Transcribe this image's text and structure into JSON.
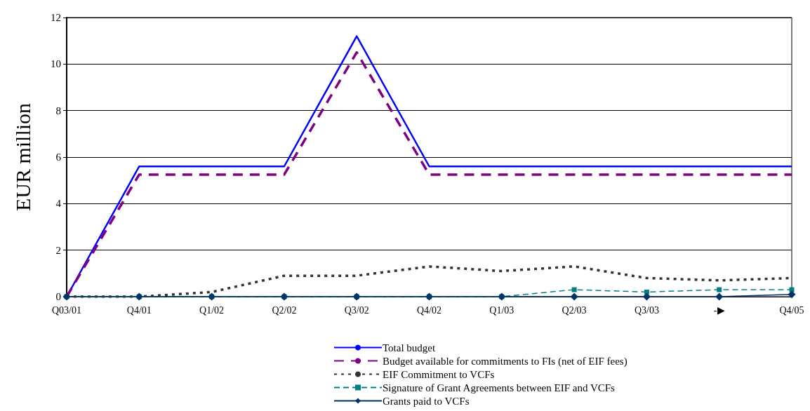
{
  "chart_data": {
    "type": "line",
    "ylabel": "EUR million",
    "categories": [
      "Q03/01",
      "Q4/01",
      "Q1/02",
      "Q2/02",
      "Q3/02",
      "Q4/02",
      "Q1/03",
      "Q2/03",
      "Q3/03",
      "-▶",
      "Q4/05"
    ],
    "series": [
      {
        "name": "Total budget",
        "color": "#0000ff",
        "line_style": "solid",
        "marker": "none",
        "values": [
          0,
          5.6,
          5.6,
          5.6,
          11.2,
          5.6,
          5.6,
          5.6,
          5.6,
          5.6,
          5.6
        ]
      },
      {
        "name": "Budget available for commitments to FIs (net of EIF fees)",
        "color": "#800080",
        "line_style": "dashed",
        "marker": "none",
        "values": [
          0,
          5.25,
          5.25,
          5.25,
          10.5,
          5.25,
          5.25,
          5.25,
          5.25,
          5.25,
          5.25
        ]
      },
      {
        "name": "EIF Commitment to VCFs",
        "color": "#333333",
        "line_style": "dotted",
        "marker": "none",
        "values": [
          0,
          0,
          0.2,
          0.9,
          0.9,
          1.3,
          1.1,
          1.3,
          0.8,
          0.7,
          0.8
        ]
      },
      {
        "name": "Signature of Grant Agreements between EIF and VCFs",
        "color": "#008080",
        "line_style": "dashed",
        "marker": "square",
        "values": [
          0,
          0,
          0,
          0,
          0,
          0,
          0,
          0.3,
          0.2,
          0.3,
          0.3
        ]
      },
      {
        "name": "Grants paid to VCFs",
        "color": "#003366",
        "line_style": "solid",
        "marker": "diamond",
        "values": [
          0,
          0,
          0,
          0,
          0,
          0,
          0,
          0,
          0,
          0,
          0.1
        ]
      }
    ],
    "ylim": [
      0,
      12
    ],
    "yticks": [
      0,
      2,
      4,
      6,
      8,
      10,
      12
    ],
    "grid": "y",
    "legend": "bottom"
  }
}
